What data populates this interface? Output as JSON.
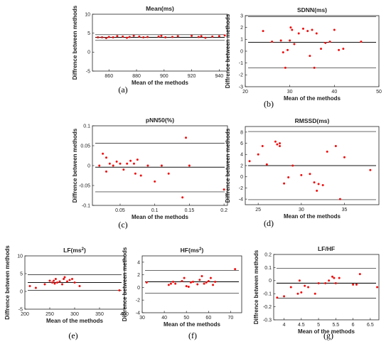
{
  "chart_data": [
    {
      "id": "a",
      "panel_label": "(a)",
      "type": "scatter",
      "title": "Mean(ms)",
      "xlabel": "Mean of the methods",
      "ylabel": "Diffrence between methods",
      "xlim": [
        848,
        946
      ],
      "ylim": [
        -5,
        10
      ],
      "xticks": [
        860,
        880,
        900,
        920,
        940
      ],
      "yticks": [
        -5,
        0,
        5,
        10
      ],
      "xtick_labels": [
        "860",
        "880",
        "900",
        "920",
        "940"
      ],
      "ytick_labels": [
        "-5",
        "0",
        "5",
        "10"
      ],
      "lines": [
        {
          "role": "upper",
          "y": 4.6
        },
        {
          "role": "mean",
          "y": 3.9
        },
        {
          "role": "lower",
          "y": 3.1
        }
      ],
      "points": [
        [
          852,
          3.9
        ],
        [
          855,
          3.9
        ],
        [
          858,
          3.7
        ],
        [
          860,
          4.0
        ],
        [
          863,
          3.9
        ],
        [
          866,
          4.2
        ],
        [
          870,
          4.1
        ],
        [
          873,
          3.8
        ],
        [
          875,
          4.0
        ],
        [
          878,
          4.3
        ],
        [
          882,
          4.1
        ],
        [
          885,
          3.9
        ],
        [
          888,
          4.0
        ],
        [
          896,
          4.1
        ],
        [
          898,
          4.3
        ],
        [
          901,
          3.9
        ],
        [
          906,
          4.0
        ],
        [
          910,
          4.2
        ],
        [
          920,
          4.3
        ],
        [
          925,
          4.0
        ],
        [
          927,
          4.2
        ],
        [
          930,
          3.8
        ],
        [
          935,
          4.1
        ],
        [
          940,
          4.2
        ],
        [
          944,
          4.4
        ]
      ]
    },
    {
      "id": "b",
      "panel_label": "(b)",
      "type": "scatter",
      "title": "SDNN(ms)",
      "xlabel": "Mean of the methods",
      "ylabel": "Diffrence between methods",
      "xlim": [
        20,
        50
      ],
      "ylim": [
        -3,
        3
      ],
      "xticks": [
        20,
        30,
        40,
        50
      ],
      "yticks": [
        -3,
        -2,
        -1,
        0,
        1,
        2,
        3
      ],
      "xtick_labels": [
        "20",
        "30",
        "40",
        "50"
      ],
      "ytick_labels": [
        "-3",
        "-2",
        "-1",
        "0",
        "1",
        "2",
        "3"
      ],
      "lines": [
        {
          "role": "upper",
          "y": 2.9
        },
        {
          "role": "mean",
          "y": 0.75
        },
        {
          "role": "lower",
          "y": -1.4
        }
      ],
      "points": [
        [
          24,
          1.7
        ],
        [
          26,
          0.8
        ],
        [
          28,
          0.9
        ],
        [
          28.5,
          -0.1
        ],
        [
          29,
          -1.4
        ],
        [
          29.5,
          0.1
        ],
        [
          30,
          0.9
        ],
        [
          30.2,
          2.0
        ],
        [
          30.5,
          1.8
        ],
        [
          31,
          0.6
        ],
        [
          32,
          1.5
        ],
        [
          33,
          1.9
        ],
        [
          34,
          1.7
        ],
        [
          34.5,
          -0.4
        ],
        [
          35,
          1.8
        ],
        [
          35.5,
          -1.4
        ],
        [
          36,
          1.5
        ],
        [
          37,
          0.2
        ],
        [
          38,
          0.7
        ],
        [
          39,
          0.8
        ],
        [
          40,
          1.8
        ],
        [
          41,
          0.1
        ],
        [
          42,
          0.2
        ],
        [
          46,
          0.8
        ]
      ]
    },
    {
      "id": "c",
      "panel_label": "(c)",
      "type": "scatter",
      "title": "pNN50(%)",
      "xlabel": "Mean of the methods",
      "ylabel": "Diffrence between methods",
      "xlim": [
        0.01,
        0.205
      ],
      "ylim": [
        -0.1,
        0.1
      ],
      "xticks": [
        0.05,
        0.1,
        0.15,
        0.2
      ],
      "yticks": [
        -0.1,
        -0.05,
        0,
        0.05,
        0.1
      ],
      "xtick_labels": [
        "0.05",
        "0.1",
        "0.15",
        "0.2"
      ],
      "ytick_labels": [
        "-0.1",
        "-0.05",
        "0",
        "0.05",
        "0.1"
      ],
      "lines": [
        {
          "role": "upper",
          "y": 0.056
        },
        {
          "role": "mean",
          "y": -0.004
        },
        {
          "role": "lower",
          "y": -0.066
        }
      ],
      "points": [
        [
          0.02,
          0.0
        ],
        [
          0.025,
          0.03
        ],
        [
          0.03,
          0.02
        ],
        [
          0.03,
          -0.015
        ],
        [
          0.035,
          0.005
        ],
        [
          0.04,
          0.0
        ],
        [
          0.045,
          0.01
        ],
        [
          0.05,
          0.005
        ],
        [
          0.055,
          -0.01
        ],
        [
          0.06,
          0.005
        ],
        [
          0.065,
          0.012
        ],
        [
          0.07,
          0.005
        ],
        [
          0.072,
          -0.02
        ],
        [
          0.075,
          0.015
        ],
        [
          0.08,
          -0.025
        ],
        [
          0.09,
          0.0
        ],
        [
          0.1,
          -0.04
        ],
        [
          0.11,
          0.0
        ],
        [
          0.12,
          -0.02
        ],
        [
          0.14,
          -0.08
        ],
        [
          0.145,
          0.07
        ],
        [
          0.15,
          0.0
        ],
        [
          0.2,
          -0.06
        ]
      ]
    },
    {
      "id": "d",
      "panel_label": "(d)",
      "type": "scatter",
      "title": "RMSSD(ms)",
      "xlabel": "Mean of the methods",
      "ylabel": "Diffrence between methods",
      "xlim": [
        23.5,
        39
      ],
      "ylim": [
        -5,
        9
      ],
      "xticks": [
        25,
        30,
        35
      ],
      "yticks": [
        -4,
        -2,
        0,
        2,
        4,
        6,
        8
      ],
      "xtick_labels": [
        "25",
        "30",
        "35"
      ],
      "ytick_labels": [
        "-4",
        "-2",
        "0",
        "2",
        "4",
        "6",
        "8"
      ],
      "lines": [
        {
          "role": "upper",
          "y": 8.1
        },
        {
          "role": "mean",
          "y": 2.0
        },
        {
          "role": "lower",
          "y": -4.1
        }
      ],
      "points": [
        [
          24,
          2.8
        ],
        [
          25,
          4.0
        ],
        [
          25.5,
          5.5
        ],
        [
          26,
          2.2
        ],
        [
          27,
          6.3
        ],
        [
          27.2,
          5.8
        ],
        [
          27.5,
          5.5
        ],
        [
          27.5,
          6.0
        ],
        [
          28,
          -1.2
        ],
        [
          28.5,
          -0.1
        ],
        [
          29,
          2.0
        ],
        [
          30,
          0.3
        ],
        [
          31,
          0.5
        ],
        [
          31.5,
          -1.0
        ],
        [
          31.8,
          -2.5
        ],
        [
          32,
          -1.3
        ],
        [
          32.5,
          -1.5
        ],
        [
          33,
          4.5
        ],
        [
          34,
          5.5
        ],
        [
          34.5,
          -4.0
        ],
        [
          35,
          3.5
        ],
        [
          38,
          1.2
        ]
      ]
    },
    {
      "id": "e",
      "panel_label": "(e)",
      "type": "scatter",
      "title": "LF(ms²)",
      "xlabel": "Mean of the methods",
      "ylabel": "Diffrence between methods",
      "xlim": [
        200,
        400
      ],
      "ylim": [
        -5,
        10
      ],
      "xticks": [
        200,
        250,
        300,
        350,
        400
      ],
      "yticks": [
        -5,
        0,
        5,
        10
      ],
      "xtick_labels": [
        "200",
        "250",
        "300",
        "350",
        "400"
      ],
      "ytick_labels": [
        "-5",
        "0",
        "5",
        "10"
      ],
      "lines": [
        {
          "role": "upper",
          "y": 4.7
        },
        {
          "role": "mean",
          "y": 2.5
        },
        {
          "role": "lower",
          "y": 0.3
        }
      ],
      "points": [
        [
          210,
          1.5
        ],
        [
          222,
          1.0
        ],
        [
          240,
          2.0
        ],
        [
          250,
          3.0
        ],
        [
          255,
          2.5
        ],
        [
          258,
          3.0
        ],
        [
          260,
          2.2
        ],
        [
          262,
          3.5
        ],
        [
          265,
          2.5
        ],
        [
          270,
          2.8
        ],
        [
          275,
          2.0
        ],
        [
          278,
          3.5
        ],
        [
          280,
          4.0
        ],
        [
          285,
          2.8
        ],
        [
          290,
          3.2
        ],
        [
          295,
          3.5
        ],
        [
          300,
          2.5
        ],
        [
          310,
          1.5
        ],
        [
          390,
          0.3
        ]
      ]
    },
    {
      "id": "f",
      "panel_label": "(f)",
      "type": "scatter",
      "title": "HF(ms²)",
      "xlabel": "Mean of the methods",
      "ylabel": "Diffrence between methods",
      "xlim": [
        30,
        75
      ],
      "ylim": [
        -4,
        5
      ],
      "xticks": [
        30,
        40,
        50,
        60,
        70
      ],
      "yticks": [
        -4,
        -2,
        0,
        2,
        4
      ],
      "xtick_labels": [
        "30",
        "40",
        "50",
        "60",
        "70"
      ],
      "ytick_labels": [
        "-4",
        "-2",
        "0",
        "2",
        "4"
      ],
      "lines": [
        {
          "role": "upper",
          "y": 2.7
        },
        {
          "role": "mean",
          "y": 0.9
        },
        {
          "role": "lower",
          "y": -0.9
        }
      ],
      "points": [
        [
          32,
          0.8
        ],
        [
          42,
          0.4
        ],
        [
          43,
          0.6
        ],
        [
          44,
          0.9
        ],
        [
          45,
          0.6
        ],
        [
          48,
          1.0
        ],
        [
          49,
          1.5
        ],
        [
          50,
          0.2
        ],
        [
          51,
          0.1
        ],
        [
          52,
          0.8
        ],
        [
          53,
          0.9
        ],
        [
          55,
          0.5
        ],
        [
          56,
          1.2
        ],
        [
          57,
          1.8
        ],
        [
          58,
          0.6
        ],
        [
          59,
          0.8
        ],
        [
          60,
          1.0
        ],
        [
          61,
          1.5
        ],
        [
          62,
          0.4
        ],
        [
          63,
          0.9
        ],
        [
          72,
          2.9
        ]
      ]
    },
    {
      "id": "g",
      "panel_label": "(g)",
      "type": "scatter",
      "title": "LF/HF",
      "xlabel": "Mean of the methods",
      "ylabel": "Diffrence between methods",
      "xlim": [
        3.7,
        6.75
      ],
      "ylim": [
        -0.3,
        0.2
      ],
      "xticks": [
        4,
        4.5,
        5,
        5.5,
        6,
        6.5
      ],
      "yticks": [
        -0.3,
        -0.2,
        -0.1,
        0,
        0.1,
        0.2
      ],
      "xtick_labels": [
        "4",
        "4.5",
        "5",
        "5.5",
        "6",
        "6.5"
      ],
      "ytick_labels": [
        "-0.3",
        "-0.2",
        "-0.1",
        "0",
        "0.1",
        "0.2"
      ],
      "lines": [
        {
          "role": "upper",
          "y": 0.095
        },
        {
          "role": "mean",
          "y": -0.02
        },
        {
          "role": "lower",
          "y": -0.135
        }
      ],
      "points": [
        [
          3.8,
          -0.13
        ],
        [
          4.0,
          -0.12
        ],
        [
          4.2,
          -0.05
        ],
        [
          4.4,
          -0.1
        ],
        [
          4.45,
          0.0
        ],
        [
          4.5,
          -0.09
        ],
        [
          4.6,
          -0.04
        ],
        [
          4.7,
          -0.05
        ],
        [
          4.9,
          -0.1
        ],
        [
          5.0,
          -0.02
        ],
        [
          5.2,
          -0.02
        ],
        [
          5.3,
          0.0
        ],
        [
          5.4,
          0.03
        ],
        [
          5.45,
          0.02
        ],
        [
          5.5,
          -0.02
        ],
        [
          5.6,
          0.02
        ],
        [
          6.0,
          -0.03
        ],
        [
          6.1,
          -0.03
        ],
        [
          6.2,
          0.05
        ],
        [
          6.7,
          -0.05
        ]
      ]
    }
  ],
  "colors": {
    "points": "#ee1111",
    "lines": "#111111",
    "axes": "#222222"
  }
}
